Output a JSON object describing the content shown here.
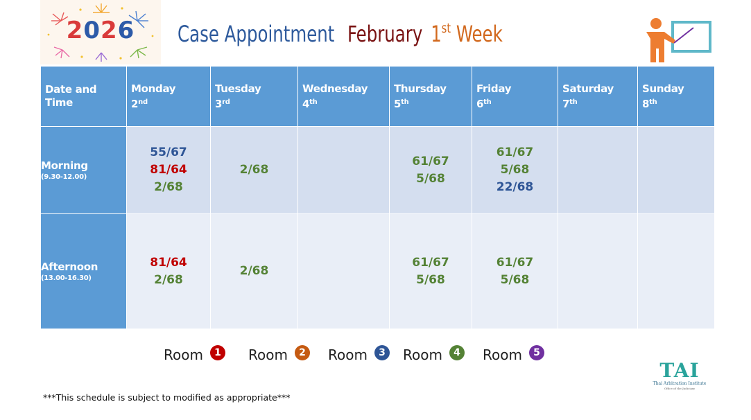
{
  "header": {
    "year": "2026",
    "title_part1": "Case Appointment",
    "title_part2": "February",
    "title_week_num": "1",
    "title_week_sup": "st",
    "title_week_word": "Week"
  },
  "table": {
    "corner": "Date and Time",
    "days": [
      {
        "name": "Monday",
        "num": "2",
        "sup": "nd"
      },
      {
        "name": "Tuesday",
        "num": "3",
        "sup": "rd"
      },
      {
        "name": "Wednesday",
        "num": "4",
        "sup": "th"
      },
      {
        "name": "Thursday",
        "num": "5",
        "sup": "th"
      },
      {
        "name": "Friday",
        "num": "6",
        "sup": "th"
      },
      {
        "name": "Saturday",
        "num": "7",
        "sup": "th"
      },
      {
        "name": "Sunday",
        "num": "8",
        "sup": "th"
      }
    ],
    "rows": [
      {
        "label": "Morning",
        "time": "(9.30-12.00)",
        "cells": [
          [
            {
              "case": "55/67",
              "room": 3
            },
            {
              "case": "81/64",
              "room": 1
            },
            {
              "case": "2/68",
              "room": 4
            }
          ],
          [
            {
              "case": "2/68",
              "room": 4
            }
          ],
          [],
          [
            {
              "case": "61/67",
              "room": 4
            },
            {
              "case": "5/68",
              "room": 4
            }
          ],
          [
            {
              "case": "61/67",
              "room": 4
            },
            {
              "case": "5/68",
              "room": 4
            },
            {
              "case": "22/68",
              "room": 3
            }
          ],
          [],
          []
        ]
      },
      {
        "label": "Afternoon",
        "time": "(13.00-16.30)",
        "cells": [
          [
            {
              "case": "81/64",
              "room": 1
            },
            {
              "case": "2/68",
              "room": 4
            }
          ],
          [
            {
              "case": "2/68",
              "room": 4
            }
          ],
          [],
          [
            {
              "case": "61/67",
              "room": 4
            },
            {
              "case": "5/68",
              "room": 4
            }
          ],
          [
            {
              "case": "61/67",
              "room": 4
            },
            {
              "case": "5/68",
              "room": 4
            }
          ],
          [],
          []
        ]
      }
    ]
  },
  "legend": [
    {
      "label": "Room",
      "num": "1",
      "color": "#c00000"
    },
    {
      "label": "Room",
      "num": "2",
      "color": "#c55a11"
    },
    {
      "label": "Room",
      "num": "3",
      "color": "#2e5596"
    },
    {
      "label": "Room",
      "num": "4",
      "color": "#548235"
    },
    {
      "label": "Room",
      "num": "5",
      "color": "#7030a0"
    }
  ],
  "footnote": "***This schedule is subject to modified as appropriate***",
  "logo": {
    "mark": "TAI",
    "name": "Thai Arbitration Institute",
    "tagline": "Office of the Judiciary"
  },
  "colors": {
    "header_blue": "#5b9bd5",
    "morning_bg": "#d4deef",
    "afternoon_bg": "#e9eef7"
  },
  "icons": {
    "header_left": "fireworks-2026-logo",
    "header_right": "presenter-icon"
  }
}
